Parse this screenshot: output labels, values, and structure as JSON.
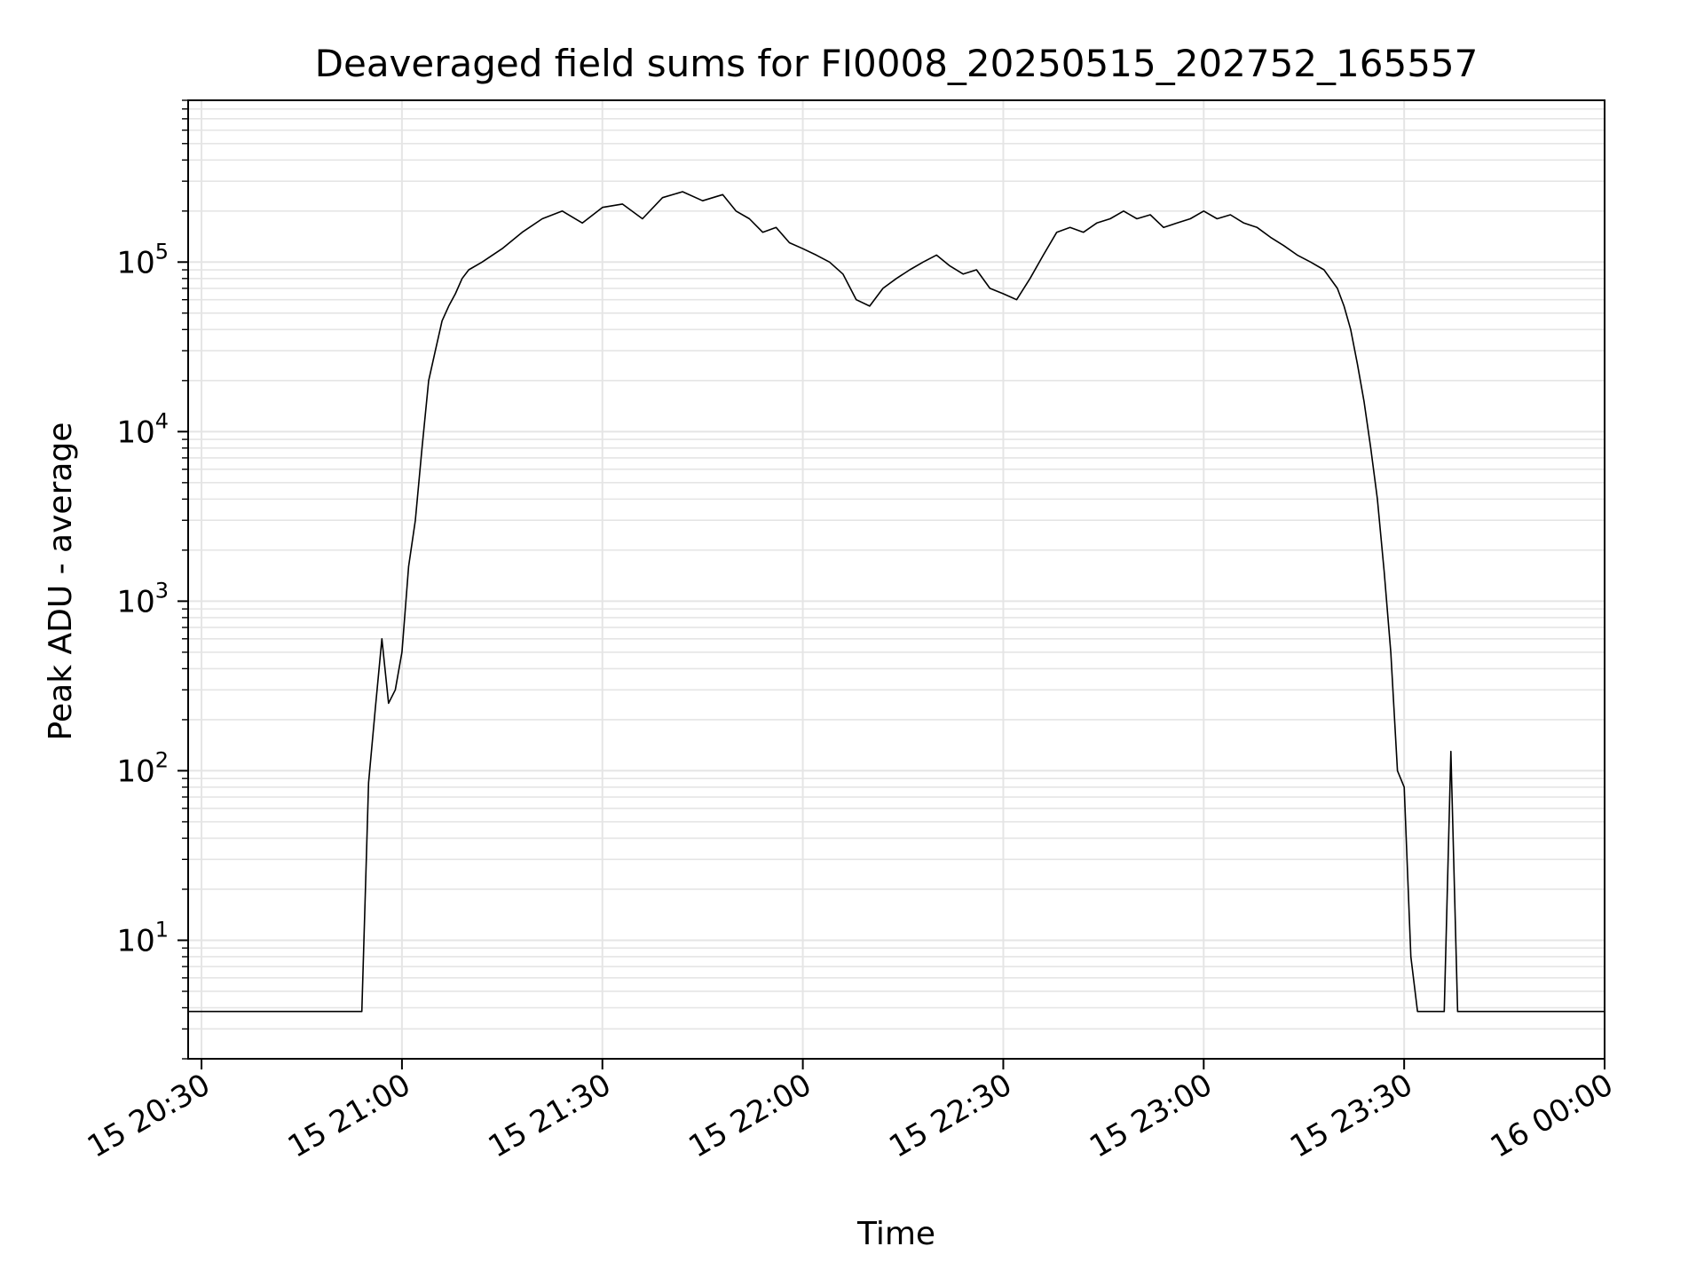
{
  "chart_data": {
    "type": "line",
    "title": "Deaveraged field sums for FI0008_20250515_202752_165557",
    "xlabel": "Time",
    "ylabel": "Peak ADU - average",
    "yscale": "log",
    "ylim": [
      2,
      900000
    ],
    "xlim": [
      "15 20:28",
      "16 00:00"
    ],
    "x_ticks": [
      "15 20:30",
      "15 21:00",
      "15 21:30",
      "15 22:00",
      "15 22:30",
      "15 23:00",
      "15 23:30",
      "16 00:00"
    ],
    "y_ticks": [
      {
        "base": "10",
        "exp": "1"
      },
      {
        "base": "10",
        "exp": "2"
      },
      {
        "base": "10",
        "exp": "3"
      },
      {
        "base": "10",
        "exp": "4"
      },
      {
        "base": "10",
        "exp": "5"
      }
    ],
    "grid": true,
    "legend": "none",
    "line_color": "#000000",
    "grid_color": "#e5e5e5",
    "series": [
      {
        "x": [
          "15 20:28",
          "15 20:30",
          "15 20:34",
          "15 20:38",
          "15 20:42",
          "15 20:46",
          "15 20:50",
          "15 20:52",
          "15 20:53",
          "15 20:54",
          "15 20:55",
          "15 20:56",
          "15 20:57",
          "15 20:58",
          "15 20:59",
          "15 21:00",
          "15 21:01",
          "15 21:02",
          "15 21:03",
          "15 21:04",
          "15 21:05",
          "15 21:06",
          "15 21:07",
          "15 21:08",
          "15 21:09",
          "15 21:10",
          "15 21:12",
          "15 21:15",
          "15 21:18",
          "15 21:21",
          "15 21:24",
          "15 21:27",
          "15 21:30",
          "15 21:33",
          "15 21:36",
          "15 21:39",
          "15 21:42",
          "15 21:45",
          "15 21:48",
          "15 21:50",
          "15 21:52",
          "15 21:54",
          "15 21:56",
          "15 21:58",
          "15 22:00",
          "15 22:02",
          "15 22:04",
          "15 22:06",
          "15 22:08",
          "15 22:10",
          "15 22:12",
          "15 22:14",
          "15 22:16",
          "15 22:18",
          "15 22:20",
          "15 22:22",
          "15 22:24",
          "15 22:26",
          "15 22:28",
          "15 22:30",
          "15 22:32",
          "15 22:34",
          "15 22:36",
          "15 22:38",
          "15 22:40",
          "15 22:42",
          "15 22:44",
          "15 22:46",
          "15 22:48",
          "15 22:50",
          "15 22:52",
          "15 22:54",
          "15 22:56",
          "15 22:58",
          "15 23:00",
          "15 23:02",
          "15 23:04",
          "15 23:06",
          "15 23:08",
          "15 23:10",
          "15 23:12",
          "15 23:14",
          "15 23:16",
          "15 23:18",
          "15 23:20",
          "15 23:21",
          "15 23:22",
          "15 23:23",
          "15 23:24",
          "15 23:25",
          "15 23:26",
          "15 23:27",
          "15 23:28",
          "15 23:29",
          "15 23:30",
          "15 23:31",
          "15 23:32",
          "15 23:33",
          "15 23:34",
          "15 23:35",
          "15 23:36",
          "15 23:37",
          "15 23:38",
          "15 23:40",
          "15 23:45",
          "15 23:50",
          "15 23:55",
          "16 00:00"
        ],
        "y": [
          3.8,
          3.8,
          3.8,
          3.8,
          3.8,
          3.8,
          3.8,
          3.8,
          3.8,
          3.8,
          85,
          230,
          600,
          250,
          300,
          500,
          1600,
          3000,
          8000,
          20000,
          30000,
          45000,
          55000,
          65000,
          80000,
          90000,
          100000,
          120000,
          150000,
          180000,
          200000,
          170000,
          210000,
          220000,
          180000,
          240000,
          260000,
          230000,
          250000,
          200000,
          180000,
          150000,
          160000,
          130000,
          120000,
          110000,
          100000,
          85000,
          60000,
          55000,
          70000,
          80000,
          90000,
          100000,
          110000,
          95000,
          85000,
          90000,
          70000,
          65000,
          60000,
          80000,
          110000,
          150000,
          160000,
          150000,
          170000,
          180000,
          200000,
          180000,
          190000,
          160000,
          170000,
          180000,
          200000,
          180000,
          190000,
          170000,
          160000,
          140000,
          125000,
          110000,
          100000,
          90000,
          70000,
          55000,
          40000,
          25000,
          15000,
          8000,
          4000,
          1500,
          500,
          100,
          80,
          8,
          3.8,
          3.8,
          3.8,
          3.8,
          3.8,
          130,
          3.8,
          3.8,
          3.8,
          3.8,
          3.8,
          3.8
        ]
      }
    ]
  }
}
